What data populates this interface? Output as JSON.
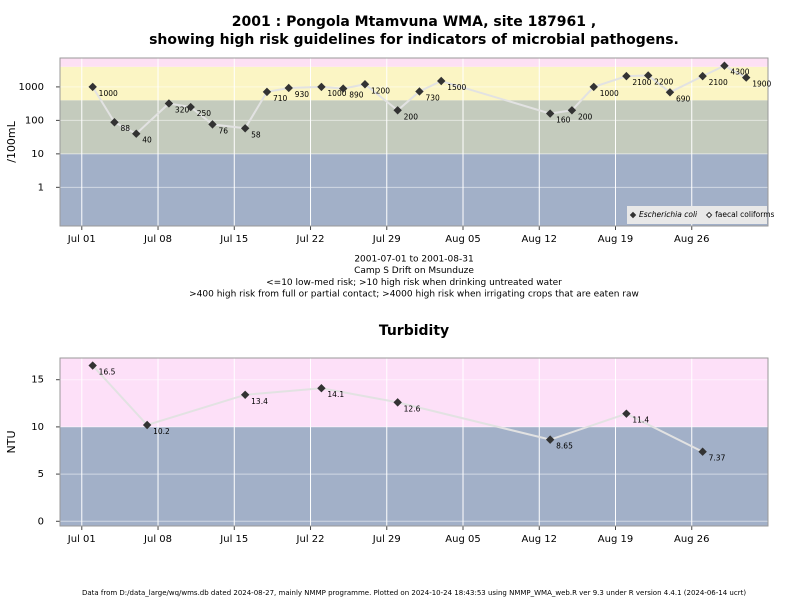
{
  "chart_data": [
    {
      "type": "line",
      "title": [
        "2001 : Pongola Mtamvuna WMA, site 187961 ,",
        "showing high risk guidelines for indicators of microbial pathogens."
      ],
      "y_label": "/100mL",
      "notes": [
        "2001-07-01 to 2001-08-31",
        "Camp S Drift on Msunduze",
        "<=10 low-med risk; >10 high risk when drinking untreated water",
        ">400 high risk from full or partial contact; >4000 high risk when irrigating crops that are eaten raw"
      ],
      "log": true,
      "grid": true,
      "legend": "bottom-right",
      "xlim": [
        "2001-06-29",
        "2001-09-02"
      ],
      "xticks": [
        {
          "value": "2001-07-01",
          "label": "Jul 01"
        },
        {
          "value": "2001-07-08",
          "label": "Jul 08"
        },
        {
          "value": "2001-07-15",
          "label": "Jul 15"
        },
        {
          "value": "2001-07-22",
          "label": "Jul 22"
        },
        {
          "value": "2001-07-29",
          "label": "Jul 29"
        },
        {
          "value": "2001-08-05",
          "label": "Aug 05"
        },
        {
          "value": "2001-08-12",
          "label": "Aug 12"
        },
        {
          "value": "2001-08-19",
          "label": "Aug 19"
        },
        {
          "value": "2001-08-26",
          "label": "Aug 26"
        }
      ],
      "ylim": [
        0.07,
        7300
      ],
      "yticks": [
        1,
        10,
        100,
        1000
      ],
      "bands": [
        {
          "to": 10,
          "color": "#a2b0c8"
        },
        {
          "from": 10,
          "to": 400,
          "color": "#c4cbbd"
        },
        {
          "from": 400,
          "to": 4000,
          "color": "#fbf5c4"
        },
        {
          "from": 4000,
          "color": "#fde0f4"
        }
      ],
      "x": [
        "2001-07-02",
        "2001-07-04",
        "2001-07-06",
        "2001-07-09",
        "2001-07-11",
        "2001-07-13",
        "2001-07-16",
        "2001-07-18",
        "2001-07-20",
        "2001-07-23",
        "2001-07-25",
        "2001-07-27",
        "2001-07-30",
        "2001-08-01",
        "2001-08-03",
        "2001-08-13",
        "2001-08-15",
        "2001-08-17",
        "2001-08-20",
        "2001-08-22",
        "2001-08-24",
        "2001-08-27",
        "2001-08-29",
        "2001-08-31"
      ],
      "series": [
        {
          "name": "Escherichia coli",
          "font_style": "italic",
          "marker": "filled",
          "color": "#333333",
          "line_color": "#e2e2e2",
          "values": [
            1000,
            88,
            40,
            320,
            250,
            76,
            58,
            710,
            930,
            1000,
            890,
            1200,
            200,
            730,
            1500,
            160,
            200,
            1000,
            2100,
            2200,
            690,
            2100,
            4300,
            1900
          ]
        },
        {
          "name": "faecal coliforms",
          "font_style": "normal",
          "marker": "open",
          "color": "#333333",
          "line_color": "#e2e2e2",
          "values": [
            null,
            null,
            null,
            null,
            null,
            null,
            null,
            null,
            null,
            null,
            null,
            null,
            null,
            null,
            null,
            null,
            null,
            null,
            null,
            null,
            null,
            null,
            null,
            null
          ]
        }
      ]
    },
    {
      "type": "line",
      "title": [
        "Turbidity"
      ],
      "y_label": "NTU",
      "log": false,
      "grid": true,
      "xlim": [
        "2001-06-29",
        "2001-09-02"
      ],
      "xticks": [
        {
          "value": "2001-07-01",
          "label": "Jul 01"
        },
        {
          "value": "2001-07-08",
          "label": "Jul 08"
        },
        {
          "value": "2001-07-15",
          "label": "Jul 15"
        },
        {
          "value": "2001-07-22",
          "label": "Jul 22"
        },
        {
          "value": "2001-07-29",
          "label": "Jul 29"
        },
        {
          "value": "2001-08-05",
          "label": "Aug 05"
        },
        {
          "value": "2001-08-12",
          "label": "Aug 12"
        },
        {
          "value": "2001-08-19",
          "label": "Aug 19"
        },
        {
          "value": "2001-08-26",
          "label": "Aug 26"
        }
      ],
      "ylim": [
        -0.5,
        17.3
      ],
      "yticks": [
        0,
        5,
        10,
        15
      ],
      "bands": [
        {
          "to": 10,
          "color": "#a2b0c8"
        },
        {
          "from": 10,
          "color": "#fde0f8"
        }
      ],
      "x": [
        "2001-07-02",
        "2001-07-07",
        "2001-07-16",
        "2001-07-23",
        "2001-07-30",
        "2001-08-13",
        "2001-08-20",
        "2001-08-27"
      ],
      "color": "#333333",
      "line_color": "#e2e2e2",
      "values": [
        16.5,
        10.2,
        13.4,
        14.1,
        12.6,
        8.65,
        11.4,
        7.37
      ]
    }
  ],
  "footer": "Data from D:/data_large/wq/wms.db dated 2024-08-27, mainly NMMP programme. Plotted on 2024-10-24 18:43:53 using NMMP_WMA_web.R ver 9.3 under R version 4.4.1 (2024-06-14 ucrt)"
}
